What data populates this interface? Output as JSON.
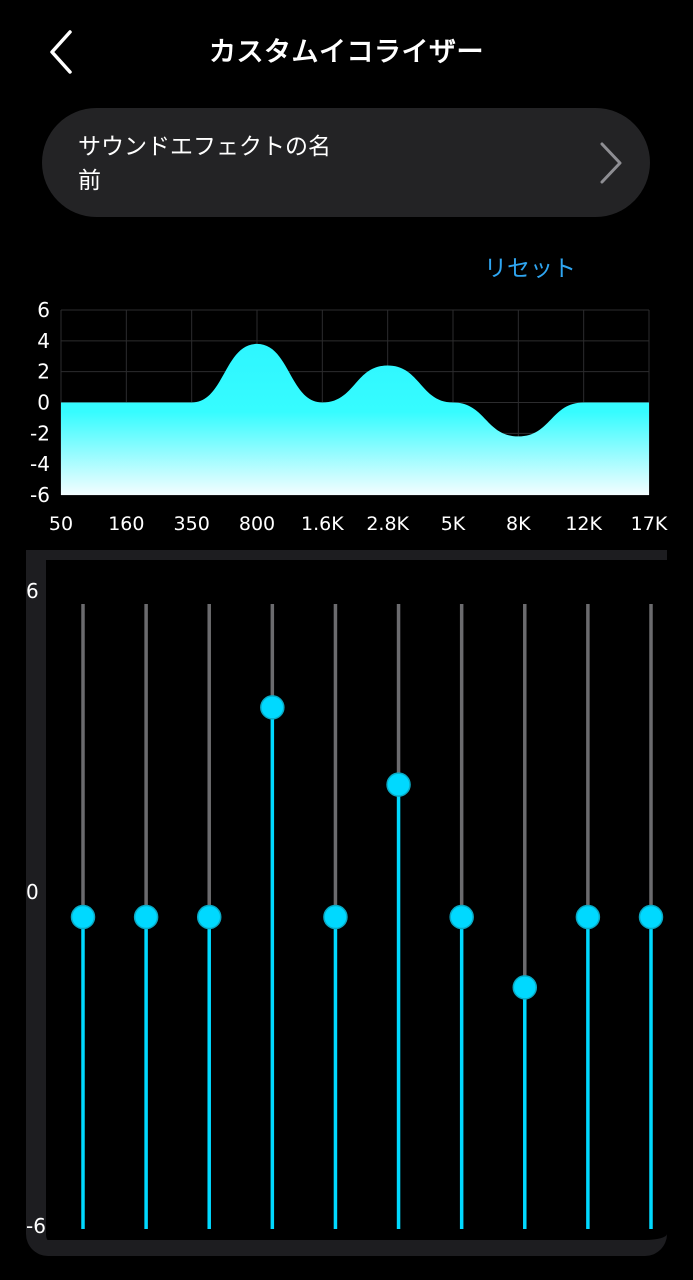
{
  "header": {
    "title": "カスタムイコライザー"
  },
  "effect": {
    "name": "サウンドエフェクトの名前"
  },
  "reset_label": "リセット",
  "accent_color": "#00d9ff",
  "chart_data": {
    "type": "area",
    "categories": [
      "50",
      "160",
      "350",
      "800",
      "1.6K",
      "2.8K",
      "5K",
      "8K",
      "12K",
      "17K"
    ],
    "values": [
      0,
      0,
      0,
      3.8,
      0,
      2.4,
      0,
      -2.2,
      0,
      0
    ],
    "ylim": [
      -6,
      6
    ],
    "yticks": [
      "6",
      "4",
      "2",
      "0",
      "-2",
      "-4",
      "-6"
    ],
    "grid": true
  },
  "sliders": {
    "max_label": "6",
    "mid_label": "0",
    "min_label": "-6",
    "range": [
      -6,
      6
    ]
  }
}
